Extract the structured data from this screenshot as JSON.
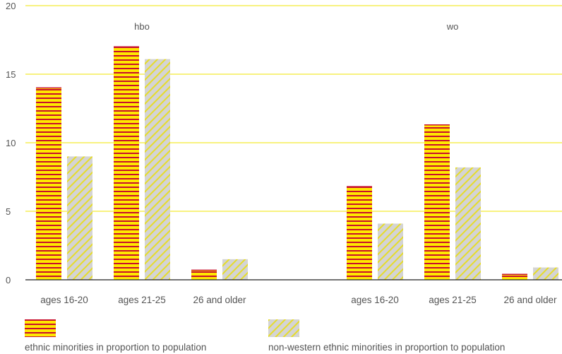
{
  "chart_data": {
    "type": "bar",
    "ylim": [
      0,
      20
    ],
    "yticks": [
      0,
      5,
      10,
      15,
      20
    ],
    "grid": true,
    "groups": [
      {
        "label": "hbo",
        "categories": [
          "ages 16-20",
          "ages 21-25",
          "26 and older"
        ]
      },
      {
        "label": "wo",
        "categories": [
          "ages 16-20",
          "ages 21-25",
          "26 and older"
        ]
      }
    ],
    "series": [
      {
        "name": "ethnic minorities in proportion to population",
        "color": "#FFE800",
        "pattern_color": "#C8102E",
        "values": [
          14.0,
          17.0,
          0.7,
          6.8,
          11.3,
          0.4
        ]
      },
      {
        "name": "non-western ethnic minorities in proportion to population",
        "color": "#D4D4D4",
        "pattern_color": "#E6DC2A",
        "values": [
          9.0,
          16.1,
          1.5,
          4.1,
          8.2,
          0.9
        ]
      }
    ],
    "legend_position": "bottom-left"
  }
}
